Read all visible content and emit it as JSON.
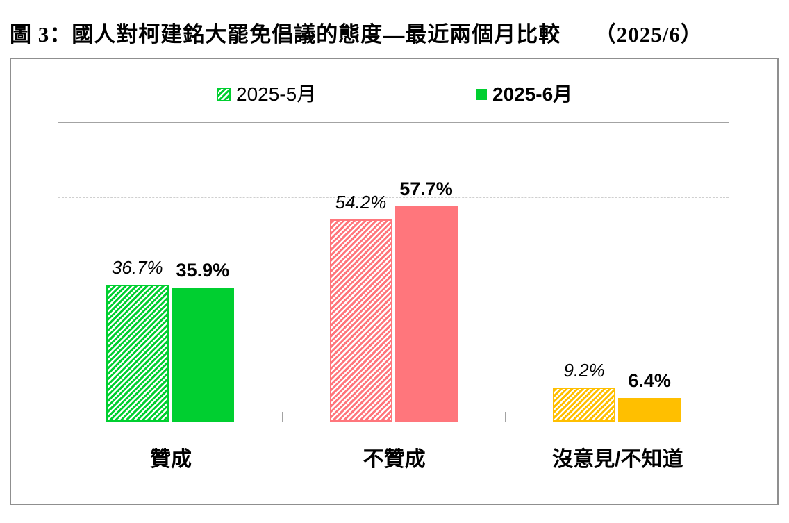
{
  "title": "圖 3：國人對柯建銘大罷免倡議的態度—最近兩個月比較　　（2025/6）",
  "chart_data": {
    "type": "bar",
    "categories": [
      "贊成",
      "不贊成",
      "沒意見/不知道"
    ],
    "series": [
      {
        "name": "2025-5月",
        "style": "hatched",
        "values": [
          36.7,
          54.2,
          9.2
        ],
        "labels": [
          "36.7%",
          "54.2%",
          "9.2%"
        ]
      },
      {
        "name": "2025-6月",
        "style": "solid",
        "values": [
          35.9,
          57.7,
          6.4
        ],
        "labels": [
          "35.9%",
          "57.7%",
          "6.4%"
        ]
      }
    ],
    "category_colors": [
      "#00CF30",
      "#FF767C",
      "#FFBF00"
    ],
    "category_keys": [
      "agree",
      "disagree",
      "no-opinion"
    ],
    "ylim": [
      0,
      80
    ],
    "gridlines_percent": [
      20,
      40,
      60
    ],
    "grid": "dashed-horizontal",
    "legend_position": "top-inside",
    "xlabel": "",
    "ylabel": ""
  }
}
